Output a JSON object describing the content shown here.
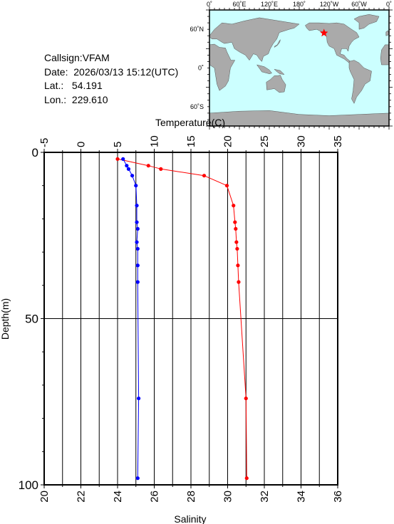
{
  "info": {
    "callsign": "Callsign:VFAM",
    "date": "Date:  2026/03/13 15:12(UTC)",
    "lat": "Lat.:   54.191",
    "lon": "Lon.:  229.610"
  },
  "map": {
    "top_labels": [
      "0˚",
      "60˚E",
      "120˚E",
      "180˚",
      "120˚W",
      "60˚W",
      "0˚"
    ],
    "lat_labels": [
      "60˚N",
      "0˚",
      "60˚S"
    ],
    "ocean_color": "#ccffff",
    "land_color": "#aaaaaa",
    "marker": "red-star-icon",
    "marker_lat": 54.191,
    "marker_lon": 229.61
  },
  "chart_data": {
    "type": "line",
    "temperature_axis": {
      "label": "Temperature(C)",
      "range": [
        -5,
        35
      ],
      "ticks": [
        "-5",
        "0",
        "5",
        "10",
        "15",
        "20",
        "25",
        "30",
        "35"
      ]
    },
    "salinity_axis": {
      "label": "Salinity",
      "range": [
        20,
        36
      ],
      "ticks": [
        "20",
        "22",
        "24",
        "26",
        "28",
        "30",
        "32",
        "34",
        "36"
      ]
    },
    "depth_axis": {
      "label": "Depth(m)",
      "range": [
        0,
        100
      ],
      "ticks": [
        "0",
        "50",
        "100"
      ],
      "inverted": true
    },
    "series": [
      {
        "color": "#ff0000",
        "quantity": "temperature",
        "points": [
          {
            "x": 5.0,
            "depth": 2
          },
          {
            "x": 9.2,
            "depth": 4
          },
          {
            "x": 10.9,
            "depth": 5
          },
          {
            "x": 16.8,
            "depth": 7
          },
          {
            "x": 19.9,
            "depth": 10
          },
          {
            "x": 20.8,
            "depth": 16
          },
          {
            "x": 21.0,
            "depth": 21
          },
          {
            "x": 21.1,
            "depth": 23
          },
          {
            "x": 21.2,
            "depth": 27
          },
          {
            "x": 21.3,
            "depth": 29
          },
          {
            "x": 21.4,
            "depth": 34
          },
          {
            "x": 21.5,
            "depth": 39
          },
          {
            "x": 22.5,
            "depth": 74
          },
          {
            "x": 22.6,
            "depth": 98
          }
        ]
      },
      {
        "color": "#0000ff",
        "quantity": "salinity",
        "points": [
          {
            "x": 24.3,
            "depth": 2
          },
          {
            "x": 24.5,
            "depth": 4
          },
          {
            "x": 24.6,
            "depth": 5
          },
          {
            "x": 24.8,
            "depth": 7
          },
          {
            "x": 25.0,
            "depth": 10
          },
          {
            "x": 25.05,
            "depth": 16
          },
          {
            "x": 25.05,
            "depth": 21
          },
          {
            "x": 25.1,
            "depth": 23
          },
          {
            "x": 25.05,
            "depth": 27
          },
          {
            "x": 25.1,
            "depth": 29
          },
          {
            "x": 25.1,
            "depth": 34
          },
          {
            "x": 25.1,
            "depth": 39
          },
          {
            "x": 25.15,
            "depth": 74
          },
          {
            "x": 25.1,
            "depth": 98
          }
        ]
      }
    ],
    "grid": true
  }
}
